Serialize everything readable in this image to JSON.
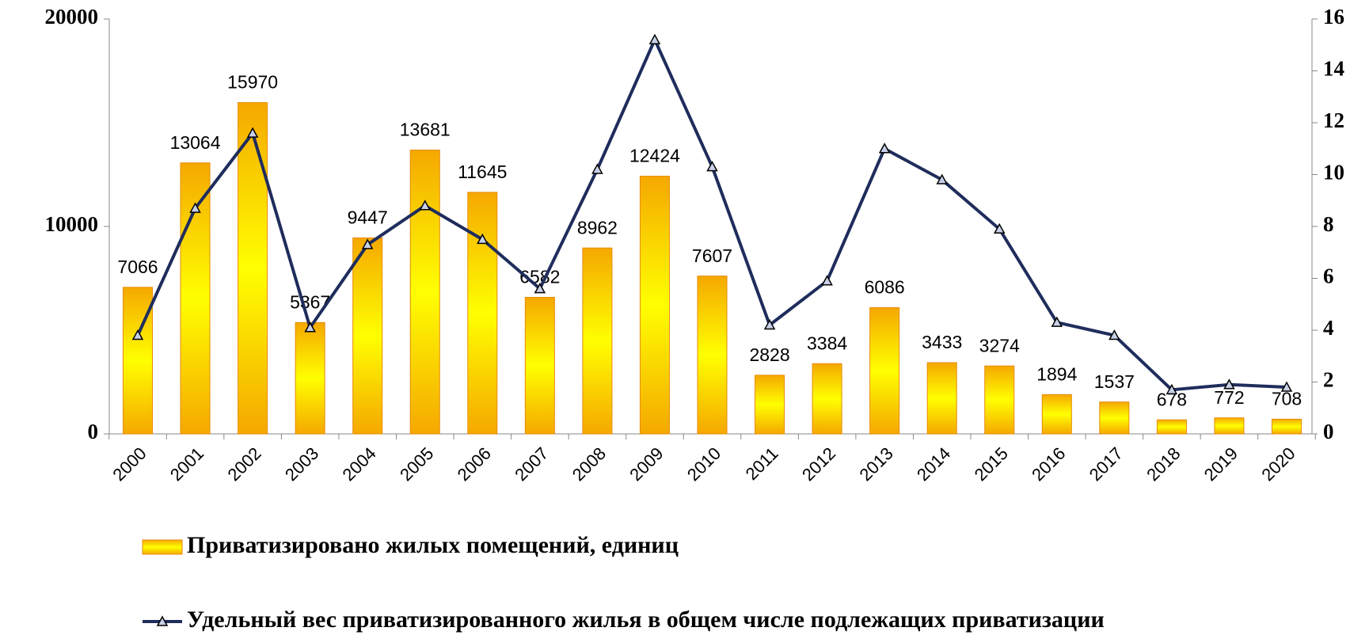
{
  "chart_data": {
    "type": "bar+line",
    "categories": [
      "2000",
      "2001",
      "2002",
      "2003",
      "2004",
      "2005",
      "2006",
      "2007",
      "2008",
      "2009",
      "2010",
      "2011",
      "2012",
      "2013",
      "2014",
      "2015",
      "2016",
      "2017",
      "2018",
      "2019",
      "2020"
    ],
    "series": [
      {
        "name": "Приватизировано жилых помещений, единиц",
        "type": "bar",
        "color": "#ffc000",
        "values": [
          7066,
          13064,
          15970,
          5367,
          9447,
          13681,
          11645,
          6582,
          8962,
          12424,
          7607,
          2828,
          3384,
          6086,
          3433,
          3274,
          1894,
          1537,
          678,
          772,
          708
        ]
      },
      {
        "name": "Удельный вес приватизированного жилья в общем числе подлежащих приватизации",
        "type": "line",
        "axis": "y2",
        "color": "#1f2d5c",
        "values": [
          3.8,
          8.7,
          11.6,
          4.1,
          7.3,
          8.8,
          7.5,
          5.6,
          10.2,
          15.2,
          10.3,
          4.2,
          5.9,
          11.0,
          9.8,
          7.9,
          4.3,
          3.8,
          1.7,
          1.9,
          1.8
        ]
      }
    ],
    "ylim": [
      0,
      20000
    ],
    "yticks": [
      0,
      10000,
      20000
    ],
    "y2lim": [
      0,
      16
    ],
    "y2ticks": [
      0,
      2,
      4,
      6,
      8,
      10,
      12,
      14,
      16
    ]
  }
}
